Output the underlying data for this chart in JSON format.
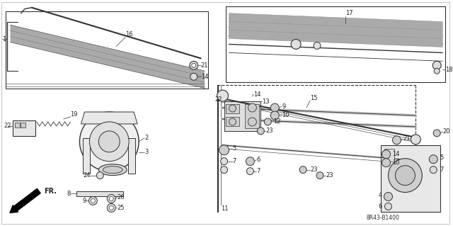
{
  "bg_color": "#ffffff",
  "ec": "#333333",
  "fig_width": 6.4,
  "fig_height": 3.19,
  "dpi": 100,
  "diagram_code": "8R43-B1400",
  "fr_label": "FR."
}
